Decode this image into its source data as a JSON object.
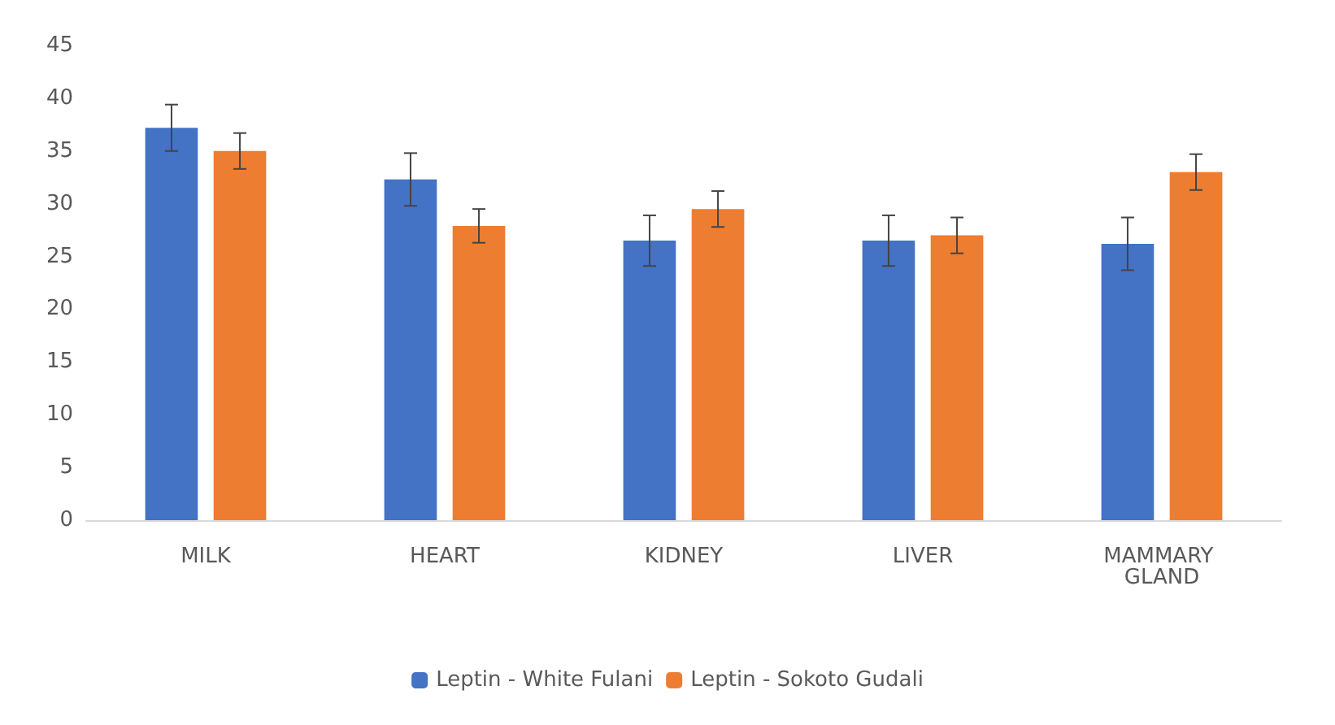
{
  "chart_data": {
    "type": "bar",
    "categories": [
      "MILK",
      "HEART",
      "KIDNEY",
      "LIVER",
      "MAMMARY GLAND"
    ],
    "series": [
      {
        "name": "Leptin - White Fulani",
        "color": "#4472c4",
        "values": [
          37.2,
          32.3,
          26.5,
          26.5,
          26.2
        ],
        "errors": [
          2.2,
          2.5,
          2.4,
          2.4,
          2.5
        ]
      },
      {
        "name": "Leptin - Sokoto Gudali",
        "color": "#ed7d31",
        "values": [
          35.0,
          27.9,
          29.5,
          27.0,
          33.0
        ],
        "errors": [
          1.7,
          1.6,
          1.7,
          1.7,
          1.7
        ]
      }
    ],
    "ylim": [
      0,
      45
    ],
    "yticks": [
      0,
      5,
      10,
      15,
      20,
      25,
      30,
      35,
      40,
      45
    ],
    "grid": false,
    "legend": "bottom"
  }
}
